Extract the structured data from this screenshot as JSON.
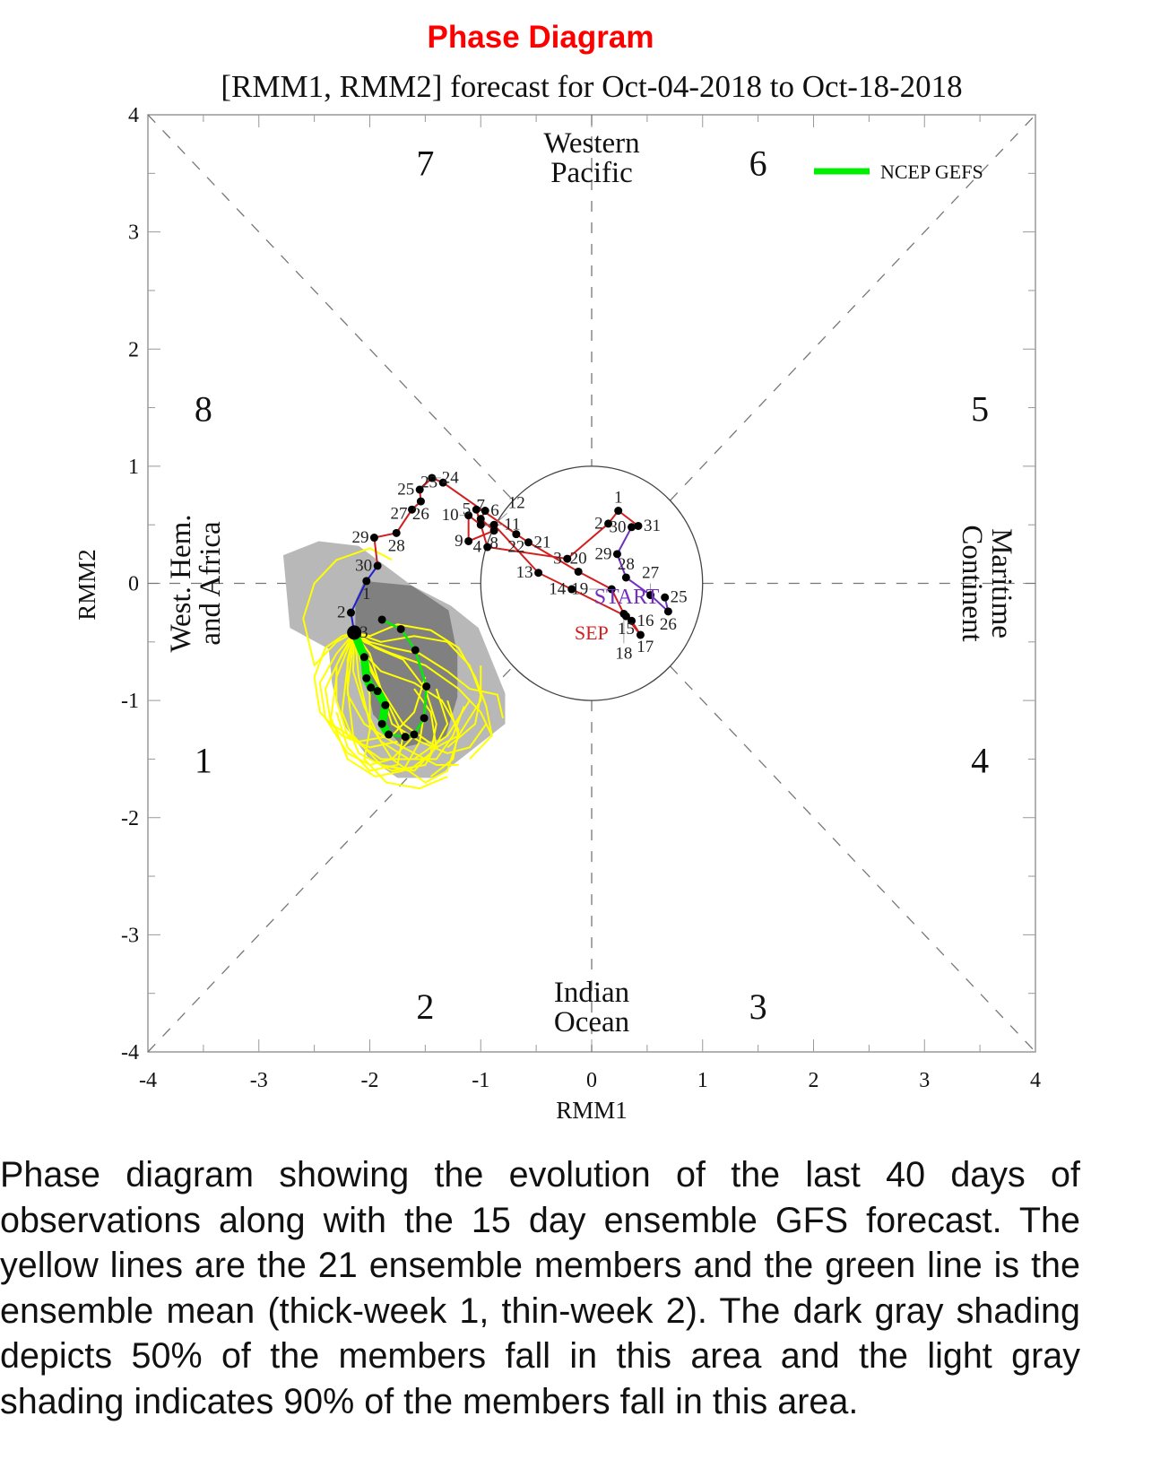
{
  "page_title": "Phase Diagram",
  "caption": "Phase diagram showing the evolution of the last 40 days of observations along with the 15 day ensemble GFS forecast. The yellow lines are the 21 ensemble members and the green line is the ensemble mean (thick-week 1, thin-week 2). The dark gray shading depicts 50% of the members fall in this area and the light gray shading indicates 90% of the members fall in this area.",
  "chart_data": {
    "type": "line",
    "title": "[RMM1, RMM2] forecast for Oct-04-2018 to Oct-18-2018",
    "xlabel": "RMM1",
    "ylabel": "RMM2",
    "xlim": [
      -4,
      4
    ],
    "ylim": [
      -4,
      4
    ],
    "x_ticks": [
      "-4",
      "-3",
      "-2",
      "-1",
      "0",
      "1",
      "2",
      "3",
      "4"
    ],
    "y_ticks": [
      "4",
      "3",
      "2",
      "1",
      "0",
      "-1",
      "-2",
      "-3",
      "-4"
    ],
    "legend": {
      "position": "top-right",
      "entries": [
        {
          "name": "NCEP GEFS",
          "color": "#00ee00"
        }
      ]
    },
    "unit_circle_radius": 1,
    "phase_labels": [
      {
        "text": "1",
        "x": -3.5,
        "y": -1.5
      },
      {
        "text": "2",
        "x": -1.5,
        "y": -3.6
      },
      {
        "text": "3",
        "x": 1.5,
        "y": -3.6
      },
      {
        "text": "4",
        "x": 3.5,
        "y": -1.5
      },
      {
        "text": "5",
        "x": 3.5,
        "y": 1.5
      },
      {
        "text": "6",
        "x": 1.5,
        "y": 3.6
      },
      {
        "text": "7",
        "x": -1.5,
        "y": 3.6
      },
      {
        "text": "8",
        "x": -3.5,
        "y": 1.5
      }
    ],
    "region_labels": {
      "top": [
        "Western",
        "Pacific"
      ],
      "bottom": [
        "Indian",
        "Ocean"
      ],
      "left": [
        "West. Hem.",
        "and Africa"
      ],
      "right": [
        "Maritime",
        "Continent"
      ]
    },
    "path_labels": {
      "start": "START",
      "sep": "SEP"
    },
    "colors": {
      "aug": "#7030c0",
      "sep": "#d02020",
      "oct": "#2020d0",
      "ensemble": "#ffff00",
      "mean": "#00ee00",
      "shade90": "#b8b8b8",
      "shade50": "#808080",
      "title": "#ff0000"
    },
    "observed": [
      {
        "month": "aug",
        "points": [
          {
            "day": "25",
            "x": 0.66,
            "y": -0.12
          },
          {
            "day": "26",
            "x": 0.69,
            "y": -0.24
          },
          {
            "day": "27",
            "x": 0.53,
            "y": -0.1
          },
          {
            "day": "28",
            "x": 0.31,
            "y": 0.05
          },
          {
            "day": "29",
            "x": 0.23,
            "y": 0.25
          },
          {
            "day": "30",
            "x": 0.36,
            "y": 0.48
          },
          {
            "day": "31",
            "x": 0.42,
            "y": 0.49
          }
        ]
      },
      {
        "month": "sep",
        "points": [
          {
            "day": "1",
            "x": 0.24,
            "y": 0.62
          },
          {
            "day": "2",
            "x": 0.15,
            "y": 0.51
          },
          {
            "day": "3",
            "x": -0.22,
            "y": 0.21
          },
          {
            "day": "4",
            "x": -0.94,
            "y": 0.31
          },
          {
            "day": "5",
            "x": -1.04,
            "y": 0.63
          },
          {
            "day": "6",
            "x": -0.96,
            "y": 0.62
          },
          {
            "day": "7",
            "x": -1.0,
            "y": 0.55
          },
          {
            "day": "8",
            "x": -0.88,
            "y": 0.45
          },
          {
            "day": "9",
            "x": -1.11,
            "y": 0.36
          },
          {
            "day": "10",
            "x": -1.11,
            "y": 0.58
          },
          {
            "day": "11",
            "x": -1.0,
            "y": 0.5
          },
          {
            "day": "12",
            "x": -0.88,
            "y": 0.5
          },
          {
            "day": "13",
            "x": -0.48,
            "y": 0.09
          },
          {
            "day": "14",
            "x": -0.18,
            "y": -0.05
          },
          {
            "day": "15",
            "x": 0.31,
            "y": -0.28
          },
          {
            "day": "16",
            "x": 0.36,
            "y": -0.32
          },
          {
            "day": "17",
            "x": 0.44,
            "y": -0.44
          },
          {
            "day": "18",
            "x": 0.29,
            "y": -0.26
          },
          {
            "day": "19",
            "x": 0.18,
            "y": -0.05
          },
          {
            "day": "20",
            "x": -0.12,
            "y": 0.1
          },
          {
            "day": "21",
            "x": -0.57,
            "y": 0.35
          },
          {
            "day": "22",
            "x": -0.68,
            "y": 0.42
          },
          {
            "day": "23",
            "x": -1.34,
            "y": 0.86
          },
          {
            "day": "24",
            "x": -1.44,
            "y": 0.9
          },
          {
            "day": "25",
            "x": -1.55,
            "y": 0.8
          },
          {
            "day": "26",
            "x": -1.54,
            "y": 0.7
          },
          {
            "day": "27",
            "x": -1.62,
            "y": 0.63
          },
          {
            "day": "28",
            "x": -1.76,
            "y": 0.43
          },
          {
            "day": "29",
            "x": -1.96,
            "y": 0.39
          },
          {
            "day": "30",
            "x": -1.93,
            "y": 0.15
          }
        ]
      },
      {
        "month": "oct",
        "points": [
          {
            "day": "1",
            "x": -2.03,
            "y": 0.02
          },
          {
            "day": "2",
            "x": -2.17,
            "y": -0.25
          },
          {
            "day": "3",
            "x": -2.14,
            "y": -0.42
          }
        ]
      }
    ],
    "ensemble_mean": [
      [
        -2.14,
        -0.42
      ],
      [
        -2.05,
        -0.63
      ],
      [
        -2.03,
        -0.81
      ],
      [
        -1.99,
        -0.89
      ],
      [
        -1.93,
        -0.92
      ],
      [
        -1.86,
        -1.04
      ],
      [
        -1.89,
        -1.2
      ],
      [
        -1.83,
        -1.29
      ],
      [
        -1.68,
        -1.31
      ],
      [
        -1.6,
        -1.29
      ],
      [
        -1.51,
        -1.15
      ],
      [
        -1.49,
        -0.88
      ],
      [
        -1.59,
        -0.57
      ],
      [
        -1.72,
        -0.39
      ],
      [
        -1.89,
        -0.31
      ]
    ],
    "shade90": [
      [
        -2.78,
        0.24
      ],
      [
        -2.46,
        0.36
      ],
      [
        -2.1,
        0.32
      ],
      [
        -1.62,
        -0.02
      ],
      [
        -1.27,
        -0.19
      ],
      [
        -1.02,
        -0.38
      ],
      [
        -0.78,
        -0.94
      ],
      [
        -0.78,
        -1.2
      ],
      [
        -1.4,
        -1.66
      ],
      [
        -1.75,
        -1.66
      ],
      [
        -2.02,
        -1.48
      ],
      [
        -2.24,
        -1.2
      ],
      [
        -2.34,
        -0.86
      ],
      [
        -2.37,
        -0.56
      ],
      [
        -2.72,
        -0.38
      ]
    ],
    "shade50": [
      [
        -2.05,
        0.02
      ],
      [
        -1.62,
        -0.02
      ],
      [
        -1.29,
        -0.23
      ],
      [
        -1.21,
        -0.61
      ],
      [
        -1.21,
        -0.97
      ],
      [
        -1.32,
        -1.32
      ],
      [
        -1.7,
        -1.4
      ],
      [
        -1.97,
        -1.12
      ],
      [
        -2.13,
        -0.41
      ],
      [
        -2.13,
        -0.15
      ]
    ],
    "ensemble_start": [
      -2.14,
      -0.42
    ],
    "ensemble_members": [
      [
        [
          -2.3,
          -0.7
        ],
        [
          -2.3,
          -1.0
        ],
        [
          -2.2,
          -1.3
        ],
        [
          -1.9,
          -1.5
        ],
        [
          -1.6,
          -1.5
        ],
        [
          -1.3,
          -1.3
        ],
        [
          -1.1,
          -1.0
        ]
      ],
      [
        [
          -2.0,
          -0.6
        ],
        [
          -1.9,
          -0.9
        ],
        [
          -1.7,
          -1.2
        ],
        [
          -1.4,
          -1.4
        ],
        [
          -1.2,
          -1.3
        ],
        [
          -1.0,
          -1.0
        ],
        [
          -1.0,
          -0.7
        ]
      ],
      [
        [
          -2.2,
          -0.7
        ],
        [
          -2.25,
          -1.1
        ],
        [
          -2.1,
          -1.45
        ],
        [
          -1.8,
          -1.6
        ],
        [
          -1.5,
          -1.55
        ],
        [
          -1.3,
          -1.2
        ],
        [
          -1.4,
          -0.9
        ]
      ],
      [
        [
          -2.05,
          -0.5
        ],
        [
          -1.8,
          -0.6
        ],
        [
          -1.5,
          -0.7
        ],
        [
          -1.2,
          -0.9
        ],
        [
          -1.0,
          -1.1
        ],
        [
          -0.9,
          -1.3
        ],
        [
          -1.1,
          -1.5
        ]
      ],
      [
        [
          -2.3,
          -0.5
        ],
        [
          -2.5,
          -0.7
        ],
        [
          -2.6,
          -0.3
        ],
        [
          -2.5,
          0.0
        ],
        [
          -2.3,
          0.2
        ],
        [
          -2.0,
          0.3
        ],
        [
          -1.8,
          0.2
        ]
      ],
      [
        [
          -2.1,
          -0.8
        ],
        [
          -2.0,
          -1.2
        ],
        [
          -1.8,
          -1.5
        ],
        [
          -1.5,
          -1.7
        ],
        [
          -1.3,
          -1.6
        ],
        [
          -1.2,
          -1.3
        ],
        [
          -1.3,
          -1.0
        ]
      ],
      [
        [
          -1.9,
          -0.5
        ],
        [
          -1.6,
          -0.45
        ],
        [
          -1.3,
          -0.5
        ],
        [
          -1.1,
          -0.7
        ],
        [
          -1.0,
          -0.95
        ],
        [
          -1.05,
          -1.2
        ],
        [
          -1.3,
          -1.4
        ]
      ],
      [
        [
          -2.2,
          -0.9
        ],
        [
          -2.15,
          -1.3
        ],
        [
          -1.9,
          -1.55
        ],
        [
          -1.6,
          -1.6
        ],
        [
          -1.4,
          -1.4
        ],
        [
          -1.45,
          -1.1
        ],
        [
          -1.6,
          -0.9
        ]
      ],
      [
        [
          -2.0,
          -0.7
        ],
        [
          -1.85,
          -1.0
        ],
        [
          -1.7,
          -1.3
        ],
        [
          -1.75,
          -1.55
        ],
        [
          -2.0,
          -1.6
        ],
        [
          -2.2,
          -1.4
        ],
        [
          -2.3,
          -1.1
        ]
      ],
      [
        [
          -2.25,
          -0.6
        ],
        [
          -2.4,
          -0.9
        ],
        [
          -2.35,
          -1.2
        ],
        [
          -2.1,
          -1.35
        ],
        [
          -1.8,
          -1.3
        ],
        [
          -1.6,
          -1.1
        ],
        [
          -1.5,
          -0.8
        ]
      ],
      [
        [
          -2.1,
          -0.55
        ],
        [
          -1.9,
          -0.75
        ],
        [
          -1.6,
          -0.85
        ],
        [
          -1.35,
          -1.0
        ],
        [
          -1.2,
          -1.25
        ],
        [
          -1.25,
          -1.5
        ],
        [
          -1.45,
          -1.65
        ]
      ],
      [
        [
          -2.3,
          -0.8
        ],
        [
          -2.35,
          -1.15
        ],
        [
          -2.2,
          -1.5
        ],
        [
          -1.95,
          -1.65
        ],
        [
          -1.7,
          -1.6
        ],
        [
          -1.55,
          -1.35
        ],
        [
          -1.5,
          -1.05
        ]
      ],
      [
        [
          -2.0,
          -0.45
        ],
        [
          -1.75,
          -0.35
        ],
        [
          -1.45,
          -0.4
        ],
        [
          -1.2,
          -0.55
        ],
        [
          -1.05,
          -0.8
        ],
        [
          -0.95,
          -1.05
        ],
        [
          -0.9,
          -1.3
        ]
      ],
      [
        [
          -2.15,
          -0.75
        ],
        [
          -2.05,
          -1.05
        ],
        [
          -1.9,
          -1.35
        ],
        [
          -1.65,
          -1.5
        ],
        [
          -1.4,
          -1.5
        ],
        [
          -1.25,
          -1.3
        ],
        [
          -1.15,
          -1.05
        ]
      ],
      [
        [
          -2.25,
          -0.45
        ],
        [
          -2.4,
          -0.55
        ],
        [
          -2.5,
          -0.8
        ],
        [
          -2.45,
          -1.1
        ],
        [
          -2.25,
          -1.3
        ],
        [
          -2.0,
          -1.4
        ],
        [
          -1.75,
          -1.35
        ]
      ],
      [
        [
          -2.05,
          -0.65
        ],
        [
          -1.9,
          -0.9
        ],
        [
          -1.8,
          -1.2
        ],
        [
          -1.55,
          -1.35
        ],
        [
          -1.3,
          -1.45
        ],
        [
          -1.1,
          -1.4
        ],
        [
          -0.95,
          -1.2
        ]
      ],
      [
        [
          -2.2,
          -0.65
        ],
        [
          -2.2,
          -0.95
        ],
        [
          -2.05,
          -1.2
        ],
        [
          -1.8,
          -1.35
        ],
        [
          -1.6,
          -1.45
        ],
        [
          -1.4,
          -1.55
        ],
        [
          -1.2,
          -1.55
        ]
      ],
      [
        [
          -2.1,
          -0.6
        ],
        [
          -2.0,
          -0.95
        ],
        [
          -2.0,
          -1.25
        ],
        [
          -2.05,
          -1.5
        ],
        [
          -1.85,
          -1.7
        ],
        [
          -1.55,
          -1.75
        ],
        [
          -1.3,
          -1.65
        ]
      ],
      [
        [
          -1.95,
          -0.55
        ],
        [
          -1.7,
          -0.65
        ],
        [
          -1.5,
          -0.9
        ],
        [
          -1.4,
          -1.2
        ],
        [
          -1.45,
          -1.45
        ],
        [
          -1.65,
          -1.6
        ],
        [
          -1.9,
          -1.55
        ]
      ],
      [
        [
          -2.3,
          -0.6
        ],
        [
          -2.45,
          -0.85
        ],
        [
          -2.4,
          -1.15
        ],
        [
          -2.2,
          -1.45
        ],
        [
          -2.0,
          -1.55
        ],
        [
          -1.8,
          -1.5
        ],
        [
          -1.6,
          -1.3
        ]
      ],
      [
        [
          -2.0,
          -0.5
        ],
        [
          -1.8,
          -0.55
        ],
        [
          -1.55,
          -0.6
        ],
        [
          -1.3,
          -0.75
        ],
        [
          -1.1,
          -0.9
        ],
        [
          -0.85,
          -0.95
        ],
        [
          -0.8,
          -1.15
        ]
      ]
    ]
  }
}
